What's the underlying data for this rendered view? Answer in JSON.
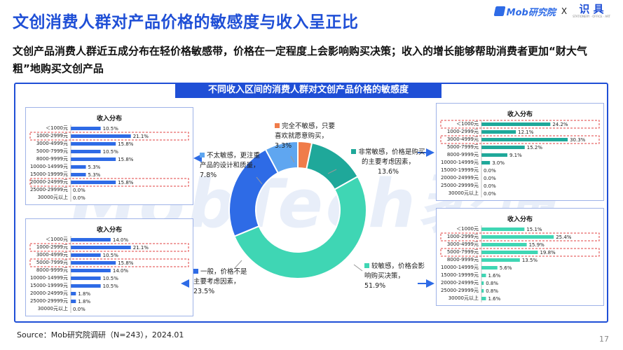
{
  "title": "文创消费人群对产品价格的敏感度与收入呈正比",
  "subtitle": "文创产品消费人群近五成分布在轻价格敏感带，价格在一定程度上会影响购买决策；收入的增长能够帮助消费者更加“财大气粗”地购买文创产品",
  "logo": {
    "mob": "Mob研究院",
    "x": "X",
    "shiju_cn": "识 具",
    "shiju_small": "STATIONERY · OFFICE · ART"
  },
  "chart_header": "不同收入区间的消费人群对文创产品价格的敏感度",
  "watermark": "MobTech袤博",
  "source": "Source：Mob研究院调研（N=243），2024.01",
  "page_number": "17",
  "colors": {
    "brand": "#1f4fd6",
    "bar_blue": "#2e6be6",
    "bar_teal": "#3fd6b4",
    "highlight": "#e04040"
  },
  "chart_data": [
    {
      "type": "pie",
      "subtype": "donut",
      "slices": [
        {
          "label": "完全不敏感，只要喜欢就愿意购买",
          "value": 3.3,
          "value_label": "3.3%",
          "color": "#f07c4a"
        },
        {
          "label": "非常敏感，价格是购买的主要考虑因素",
          "value": 13.6,
          "value_label": "13.6%",
          "color": "#1fa89a"
        },
        {
          "label": "较敏感，价格会影响购买决策",
          "value": 51.9,
          "value_label": "51.9%",
          "color": "#3fd6b4"
        },
        {
          "label": "一般，价格不是主要考虑因素",
          "value": 23.5,
          "value_label": "23.5%",
          "color": "#2e6be6"
        },
        {
          "label": "不太敏感，更注重产品的设计和质量",
          "value": 7.8,
          "value_label": "7.8%",
          "color": "#5fa6f0"
        }
      ]
    },
    {
      "type": "bar",
      "title": "收入分布",
      "color": "#2e6be6",
      "categories": [
        "＜1000元",
        "1000-2999元",
        "3000-4999元",
        "5000-7999元",
        "8000-9999元",
        "10000-14999元",
        "15000-19999元",
        "20000-24999元",
        "25000-29999元",
        "30000元以上"
      ],
      "values": [
        10.5,
        21.1,
        15.8,
        10.5,
        15.8,
        5.3,
        5.3,
        15.8,
        0.0,
        0.0
      ],
      "value_labels": [
        "10.5%",
        "21.1%",
        "15.8%",
        "10.5%",
        "15.8%",
        "5.3%",
        "5.3%",
        "15.8%",
        "0.0%",
        "0.0%"
      ],
      "highlighted": [
        1,
        7
      ]
    },
    {
      "type": "bar",
      "title": "收入分布",
      "color": "#2e6be6",
      "categories": [
        "＜1000元",
        "1000-2999元",
        "3000-4999元",
        "5000-7999元",
        "8000-9999元",
        "10000-14999元",
        "15000-19999元",
        "20000-24999元",
        "25000-29999元",
        "30000元以上"
      ],
      "values": [
        14.0,
        21.1,
        10.5,
        15.8,
        14.0,
        10.5,
        10.5,
        1.8,
        1.8,
        0.0
      ],
      "value_labels": [
        "14.0%",
        "21.1%",
        "10.5%",
        "15.8%",
        "14.0%",
        "10.5%",
        "10.5%",
        "1.8%",
        "1.8%",
        "0.0%"
      ],
      "highlighted": [
        1,
        3
      ]
    },
    {
      "type": "bar",
      "title": "收入分布",
      "color": "#1fa89a",
      "categories": [
        "＜1000元",
        "1000-2999元",
        "3000-4999元",
        "5000-7999元",
        "8000-9999元",
        "10000-14999元",
        "15000-19999元",
        "20000-24999元",
        "25000-29999元",
        "30000元以上"
      ],
      "values": [
        24.2,
        12.1,
        30.3,
        15.2,
        9.1,
        3.0,
        0.0,
        0.0,
        0.0,
        0.0
      ],
      "value_labels": [
        "24.2%",
        "12.1%",
        "30.3%",
        "15.2%",
        "9.1%",
        "3.0%",
        "0.0%",
        "0.0%",
        "0.0%",
        "0.0%"
      ],
      "highlighted": [
        0,
        2
      ]
    },
    {
      "type": "bar",
      "title": "收入分布",
      "color": "#3fd6b4",
      "categories": [
        "＜1000元",
        "1000-2999元",
        "3000-4999元",
        "5000-7999元",
        "8000-9999元",
        "10000-14999元",
        "15000-19999元",
        "20000-24999元",
        "25000-29999元",
        "30000元以上"
      ],
      "values": [
        15.1,
        25.4,
        15.9,
        19.8,
        13.5,
        5.6,
        1.6,
        0.8,
        0.8,
        1.6
      ],
      "value_labels": [
        "15.1%",
        "25.4%",
        "15.9%",
        "19.8%",
        "13.5%",
        "5.6%",
        "1.6%",
        "0.8%",
        "0.8%",
        "1.6%"
      ],
      "highlighted": [
        1,
        3
      ]
    }
  ]
}
